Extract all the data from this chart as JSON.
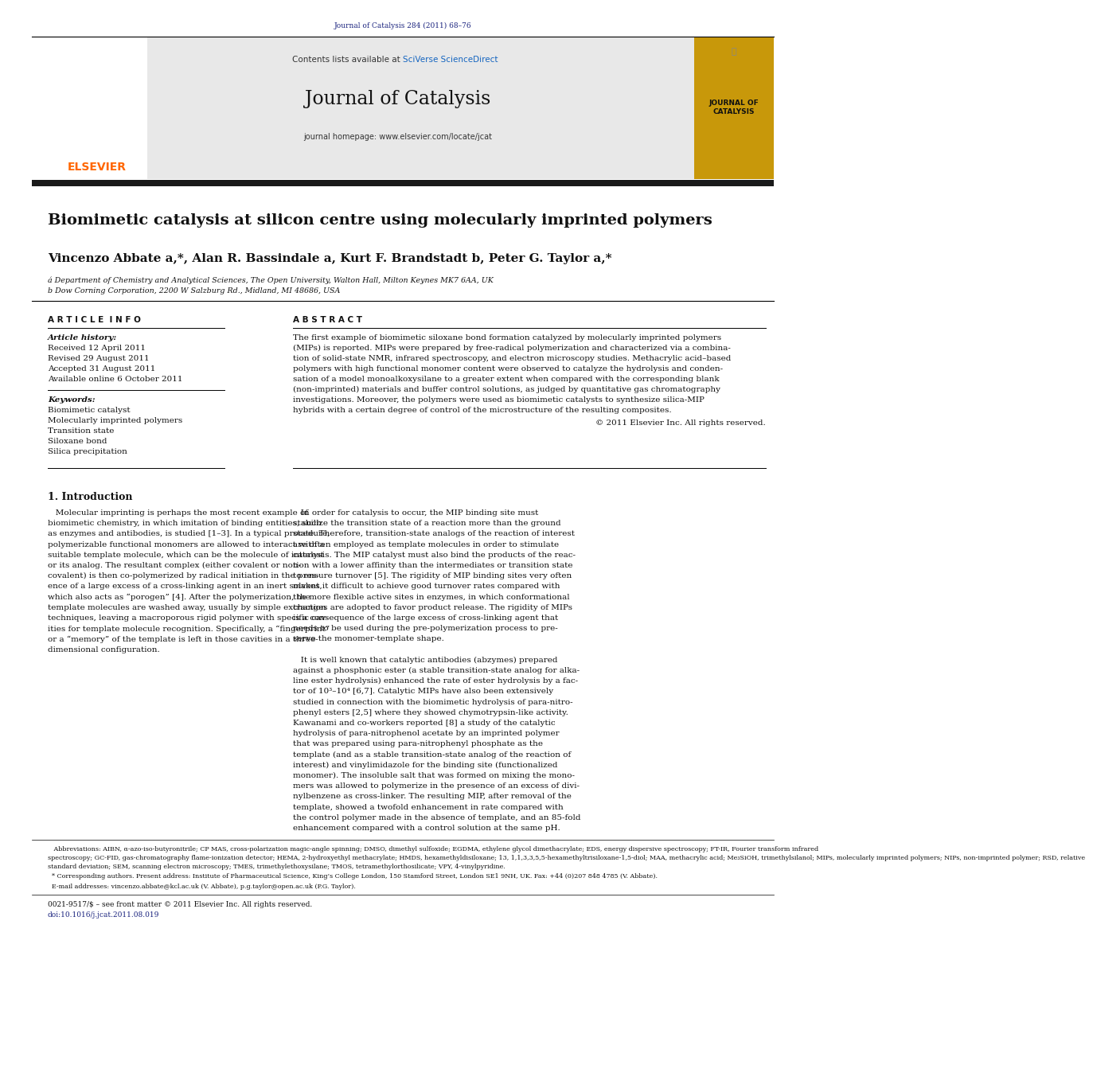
{
  "page_width": 9.92,
  "page_height": 13.23,
  "bg_color": "#ffffff",
  "journal_ref": "Journal of Catalysis 284 (2011) 68–76",
  "journal_ref_color": "#1a237e",
  "contents_text": "Contents lists available at ",
  "sciverse_text": "SciVerse ScienceDirect",
  "sciverse_color": "#1565c0",
  "journal_name": "Journal of Catalysis",
  "homepage_text": "journal homepage: www.elsevier.com/locate/jcat",
  "header_bg": "#e8e8e8",
  "black_bar_color": "#1a1a1a",
  "elsevier_color": "#ff6600",
  "title": "Biomimetic catalysis at silicon centre using molecularly imprinted polymers",
  "affil1": "á Department of Chemistry and Analytical Sciences, The Open University, Walton Hall, Milton Keynes MK7 6AA, UK",
  "affil2": "b Dow Corning Corporation, 2200 W Salzburg Rd., Midland, MI 48686, USA",
  "article_info_title": "A R T I C L E  I N F O",
  "abstract_title": "A B S T R A C T",
  "article_history_label": "Article history:",
  "received": "Received 12 April 2011",
  "revised": "Revised 29 August 2011",
  "accepted": "Accepted 31 August 2011",
  "available": "Available online 6 October 2011",
  "keywords_label": "Keywords:",
  "keywords": [
    "Biomimetic catalyst",
    "Molecularly imprinted polymers",
    "Transition state",
    "Siloxane bond",
    "Silica precipitation"
  ],
  "abstract_lines": [
    "The first example of biomimetic siloxane bond formation catalyzed by molecularly imprinted polymers",
    "(MIPs) is reported. MIPs were prepared by free-radical polymerization and characterized via a combina-",
    "tion of solid-state NMR, infrared spectroscopy, and electron microscopy studies. Methacrylic acid–based",
    "polymers with high functional monomer content were observed to catalyze the hydrolysis and conden-",
    "sation of a model monoalkoxysilane to a greater extent when compared with the corresponding blank",
    "(non-imprinted) materials and buffer control solutions, as judged by quantitative gas chromatography",
    "investigations. Moreover, the polymers were used as biomimetic catalysts to synthesize silica-MIP",
    "hybrids with a certain degree of control of the microstructure of the resulting composites."
  ],
  "abstract_copyright": "© 2011 Elsevier Inc. All rights reserved.",
  "intro_heading": "1. Introduction",
  "intro_col1_lines": [
    "   Molecular imprinting is perhaps the most recent example of",
    "biomimetic chemistry, in which imitation of binding entities, such",
    "as enzymes and antibodies, is studied [1–3]. In a typical procedure,",
    "polymerizable functional monomers are allowed to interact with a",
    "suitable template molecule, which can be the molecule of interest",
    "or its analog. The resultant complex (either covalent or non-",
    "covalent) is then co-polymerized by radical initiation in the pres-",
    "ence of a large excess of a cross-linking agent in an inert solvent,",
    "which also acts as “porogen” [4]. After the polymerization, the",
    "template molecules are washed away, usually by simple extraction",
    "techniques, leaving a macroporous rigid polymer with specific cav-",
    "ities for template molecule recognition. Specifically, a “fingerprint”",
    "or a “memory” of the template is left in those cavities in a three-",
    "dimensional configuration."
  ],
  "intro_col2_lines": [
    "   In order for catalysis to occur, the MIP binding site must",
    "stabilize the transition state of a reaction more than the ground",
    "state. Therefore, transition-state analogs of the reaction of interest",
    "are often employed as template molecules in order to stimulate",
    "catalysis. The MIP catalyst must also bind the products of the reac-",
    "tion with a lower affinity than the intermediates or transition state",
    "to ensure turnover [5]. The rigidity of MIP binding sites very often",
    "makes it difficult to achieve good turnover rates compared with",
    "the more flexible active sites in enzymes, in which conformational",
    "changes are adopted to favor product release. The rigidity of MIPs",
    "is a consequence of the large excess of cross-linking agent that",
    "needs to be used during the pre-polymerization process to pre-",
    "serve the monomer-template shape.",
    "",
    "   It is well known that catalytic antibodies (abzymes) prepared",
    "against a phosphonic ester (a stable transition-state analog for alka-",
    "line ester hydrolysis) enhanced the rate of ester hydrolysis by a fac-",
    "tor of 10³–10⁴ [6,7]. Catalytic MIPs have also been extensively",
    "studied in connection with the biomimetic hydrolysis of para-nitro-",
    "phenyl esters [2,5] where they showed chymotrypsin-like activity.",
    "Kawanami and co-workers reported [8] a study of the catalytic",
    "hydrolysis of para-nitrophenol acetate by an imprinted polymer",
    "that was prepared using para-nitrophenyl phosphate as the",
    "template (and as a stable transition-state analog of the reaction of",
    "interest) and vinylimidazole for the binding site (functionalized",
    "monomer). The insoluble salt that was formed on mixing the mono-",
    "mers was allowed to polymerize in the presence of an excess of divi-",
    "nylbenzene as cross-linker. The resulting MIP, after removal of the",
    "template, showed a twofold enhancement in rate compared with",
    "the control polymer made in the absence of template, and an 85-fold",
    "enhancement compared with a control solution at the same pH."
  ],
  "footnote_abbrev_lines": [
    "   Abbreviations: AIBN, α-azo-iso-butyronitrile; CP MAS, cross-polarization magic-angle spinning; DMSO, dimethyl sulfoxide; EGDMA, ethylene glycol dimethacrylate; EDS, energy dispersive spectroscopy; FT-IR, Fourier transform infrared",
    "spectroscopy; GC-FID, gas-chromatography flame-ionization detector; HEMA, 2-hydroxyethyl methacrylate; HMDS, hexamethyldisiloxane; 13, 1,1,3,3,5,5-hexamethyltrisiloxane-1,5-diol; MAA, methacrylic acid; Me₃SiOH, trimethylsilanol; MIPs, molecularly imprinted polymers; NIPs, non-imprinted polymer; RSD, relative",
    "standard deviation; SEM, scanning electron microscopy; TMES, trimethylethoxysilane; TMOS, tetramethylorthosilicate; VPY, 4-vinylpyridine."
  ],
  "footnote_corresponding": "  * Corresponding authors. Present address: Institute of Pharmaceutical Science, King’s College London, 150 Stamford Street, London SE1 9NH, UK. Fax: +44 (0)207 848 4785 (V. Abbate).",
  "footnote_email": "  E-mail addresses: vincenzo.abbate@kcl.ac.uk (V. Abbate), p.g.taylor@open.ac.uk (P.G. Taylor).",
  "footer_line1": "0021-9517/$ – see front matter © 2011 Elsevier Inc. All rights reserved.",
  "footer_line2": "doi:10.1016/j.jcat.2011.08.019"
}
